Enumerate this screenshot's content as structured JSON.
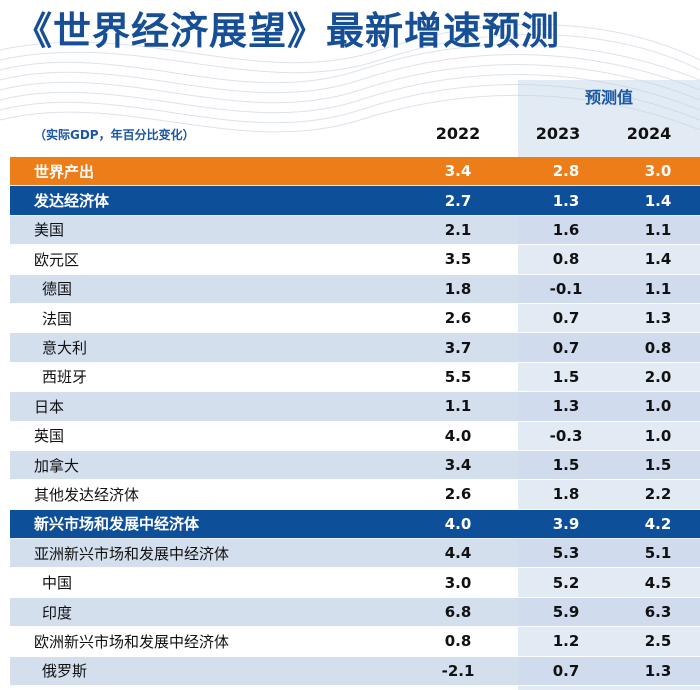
{
  "title": "《世界经济展望》最新增速预测",
  "forecast_label": "预测值",
  "units_label": "（实际GDP，年百分比变化）",
  "years": [
    "2022",
    "2023",
    "2024"
  ],
  "rows": [
    {
      "name": "世界产出",
      "v2022": "3.4",
      "v2023": "2.8",
      "v2024": "3.0"
    },
    {
      "name": "发达经济体",
      "v2022": "2.7",
      "v2023": "1.3",
      "v2024": "1.4"
    },
    {
      "name": "美国",
      "v2022": "2.1",
      "v2023": "1.6",
      "v2024": "1.1"
    },
    {
      "name": "欧元区",
      "v2022": "3.5",
      "v2023": "0.8",
      "v2024": "1.4"
    },
    {
      "name": "德国",
      "v2022": "1.8",
      "v2023": "-0.1",
      "v2024": "1.1"
    },
    {
      "name": "法国",
      "v2022": "2.6",
      "v2023": "0.7",
      "v2024": "1.3"
    },
    {
      "name": "意大利",
      "v2022": "3.7",
      "v2023": "0.7",
      "v2024": "0.8"
    },
    {
      "name": "西班牙",
      "v2022": "5.5",
      "v2023": "1.5",
      "v2024": "2.0"
    },
    {
      "name": "日本",
      "v2022": "1.1",
      "v2023": "1.3",
      "v2024": "1.0"
    },
    {
      "name": "英国",
      "v2022": "4.0",
      "v2023": "-0.3",
      "v2024": "1.0"
    },
    {
      "name": "加拿大",
      "v2022": "3.4",
      "v2023": "1.5",
      "v2024": "1.5"
    },
    {
      "name": "其他发达经济体",
      "v2022": "2.6",
      "v2023": "1.8",
      "v2024": "2.2"
    },
    {
      "name": "新兴市场和发展中经济体",
      "v2022": "4.0",
      "v2023": "3.9",
      "v2024": "4.2"
    },
    {
      "name": "亚洲新兴市场和发展中经济体",
      "v2022": "4.4",
      "v2023": "5.3",
      "v2024": "5.1"
    },
    {
      "name": "中国",
      "v2022": "3.0",
      "v2023": "5.2",
      "v2024": "4.5"
    },
    {
      "name": "印度",
      "v2022": "6.8",
      "v2023": "5.9",
      "v2024": "6.3"
    },
    {
      "name": "欧洲新兴市场和发展中经济体",
      "v2022": "0.8",
      "v2023": "1.2",
      "v2024": "2.5"
    },
    {
      "name": "俄罗斯",
      "v2022": "-2.1",
      "v2023": "0.7",
      "v2024": "1.3"
    }
  ],
  "colors": {
    "title": "#164f96",
    "world_row": "#ec7d18",
    "group_row": "#0e4f99",
    "shade_row": "#ccd9eb"
  }
}
